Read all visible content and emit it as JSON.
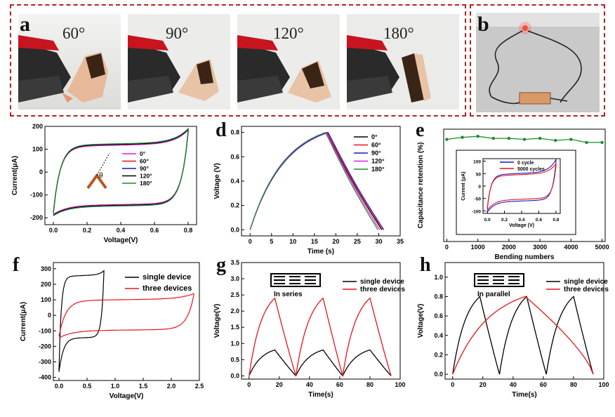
{
  "photos": {
    "panel_a_label": "a",
    "panel_b_label": "b",
    "angles": [
      "60°",
      "90°",
      "120°",
      "180°"
    ]
  },
  "panel_labels": {
    "d": "d",
    "e": "e",
    "f": "f",
    "g": "g",
    "h": "h"
  },
  "colors": {
    "black": "#000000",
    "red": "#e8141b",
    "blue": "#1a17c9",
    "magenta": "#e619e6",
    "green": "#1c8a2e",
    "frame": "#b22222"
  },
  "chart_data": [
    {
      "id": "c",
      "type": "line",
      "xlabel": "Voltage(V)",
      "ylabel": "Current(μA)",
      "xlim": [
        -0.05,
        0.85
      ],
      "ylim": [
        -230,
        200
      ],
      "xticks": [
        "0.0",
        "0.2",
        "0.4",
        "0.6",
        "0.8"
      ],
      "yticks": [
        "-200",
        "-100",
        "0",
        "100",
        "200"
      ],
      "legend": [
        "0°",
        "60°",
        "90°",
        "120°",
        "180°"
      ],
      "legend_position": "inside-center-right",
      "series": [
        {
          "name": "0°",
          "color": "#e619e6"
        },
        {
          "name": "60°",
          "color": "#e8141b"
        },
        {
          "name": "90°",
          "color": "#1a17c9"
        },
        {
          "name": "120°",
          "color": "#000000"
        },
        {
          "name": "180°",
          "color": "#1c8a2e"
        }
      ],
      "inset_annotation": "θ",
      "cv_shape": {
        "upper_plateau": 115,
        "lower_plateau": -140,
        "vmax": 0.8,
        "imax": 175,
        "imin": -178
      }
    },
    {
      "id": "d",
      "type": "line",
      "xlabel": "Time (s)",
      "ylabel": "Voltage (V)",
      "xlim": [
        -2,
        35
      ],
      "ylim": [
        -0.05,
        0.85
      ],
      "xticks": [
        "0",
        "5",
        "10",
        "15",
        "20",
        "25",
        "30",
        "35"
      ],
      "yticks": [
        "0.0",
        "0.2",
        "0.4",
        "0.6",
        "0.8"
      ],
      "legend": [
        "0°",
        "60°",
        "90°",
        "120°",
        "180°"
      ],
      "legend_position": "top-right",
      "series": [
        {
          "name": "0°",
          "color": "#000000",
          "charge_end": 17.9,
          "discharge_end": 30.7
        },
        {
          "name": "60°",
          "color": "#e8141b",
          "charge_end": 18.0,
          "discharge_end": 30.9
        },
        {
          "name": "90°",
          "color": "#1a17c9",
          "charge_end": 18.2,
          "discharge_end": 31.2
        },
        {
          "name": "120°",
          "color": "#e619e6",
          "charge_end": 17.8,
          "discharge_end": 30.2
        },
        {
          "name": "180°",
          "color": "#1c8a2e",
          "charge_end": 17.6,
          "discharge_end": 29.8
        }
      ]
    },
    {
      "id": "e",
      "type": "line",
      "xlabel": "Bending numbers",
      "ylabel": "Capacitance retention (%)",
      "xlim": [
        -100,
        5100
      ],
      "ylim": [
        0,
        110
      ],
      "xticks": [
        "0",
        "1000",
        "2000",
        "3000",
        "4000",
        "5000"
      ],
      "series": [
        {
          "name": "retention",
          "color": "#1c8a2e",
          "x": [
            0,
            500,
            1000,
            1500,
            2000,
            2500,
            3000,
            3500,
            4000,
            4500,
            5000
          ],
          "y": [
            100,
            102,
            103,
            101,
            101,
            100,
            101,
            99,
            100,
            97,
            97
          ]
        }
      ],
      "inset": {
        "xlabel": "Voltage (V)",
        "ylabel": "Current (μA)",
        "xticks": [
          "0.0",
          "0.2",
          "0.4",
          "0.6",
          "0.8"
        ],
        "yticks": [
          "-100",
          "-50",
          "0",
          "50",
          "100"
        ],
        "legend": [
          "0 cycle",
          "5000 cycles"
        ],
        "series": [
          {
            "name": "0 cycle",
            "color": "#1a17c9"
          },
          {
            "name": "5000 cycles",
            "color": "#e8141b"
          }
        ]
      }
    },
    {
      "id": "f",
      "type": "line",
      "xlabel": "Voltage(V)",
      "ylabel": "Current(μA)",
      "xlim": [
        -0.1,
        2.5
      ],
      "ylim": [
        -420,
        340
      ],
      "xticks": [
        "0.0",
        "0.5",
        "1.0",
        "1.5",
        "2.0",
        "2.5"
      ],
      "yticks": [
        "-400",
        "-300",
        "-200",
        "-100",
        "0",
        "100",
        "200",
        "300"
      ],
      "legend": [
        "single device",
        "three devices"
      ],
      "legend_position": "top-right",
      "series": [
        {
          "name": "single device",
          "color": "#000000",
          "vmax": 0.8,
          "imax": 275,
          "imin": -355,
          "plateau_hi": 250,
          "plateau_lo": -140
        },
        {
          "name": "three devices",
          "color": "#e8141b",
          "vmax": 2.4,
          "imax": 128,
          "imin": -135,
          "plateau_hi": 95,
          "plateau_lo": -90
        }
      ]
    },
    {
      "id": "g",
      "type": "line",
      "xlabel": "Time(s)",
      "ylabel": "Voltage(V)",
      "xlim": [
        -5,
        100
      ],
      "ylim": [
        -0.1,
        3.5
      ],
      "xticks": [
        "0",
        "20",
        "40",
        "60",
        "80",
        "100"
      ],
      "yticks": [
        "0.0",
        "0.5",
        "1.0",
        "1.5",
        "2.0",
        "2.5",
        "3.0",
        "3.5"
      ],
      "legend": [
        "single device",
        "three devices"
      ],
      "legend_position": "top-right",
      "inset_label": "In series",
      "series": [
        {
          "name": "single device",
          "color": "#000000",
          "vmax": 0.8,
          "peaks": [
            17,
            49,
            80
          ],
          "troughs": [
            0,
            31,
            62,
            94
          ]
        },
        {
          "name": "three devices",
          "color": "#e8141b",
          "vmax": 2.4,
          "peaks": [
            17,
            49,
            80
          ],
          "troughs": [
            0,
            31,
            62,
            94
          ]
        }
      ]
    },
    {
      "id": "h",
      "type": "line",
      "xlabel": "Time(s)",
      "ylabel": "Voltage(V)",
      "xlim": [
        -5,
        100
      ],
      "ylim": [
        -0.05,
        1.15
      ],
      "xticks": [
        "0",
        "20",
        "40",
        "60",
        "80",
        "100"
      ],
      "yticks": [
        "0.0",
        "0.2",
        "0.4",
        "0.6",
        "0.8",
        "1.0"
      ],
      "legend": [
        "single device",
        "three devices"
      ],
      "legend_position": "top-right",
      "inset_label": "In parallel",
      "series": [
        {
          "name": "single device",
          "color": "#000000",
          "vmax": 0.8,
          "peaks": [
            18,
            49,
            80
          ],
          "troughs": [
            0,
            31,
            62,
            93
          ]
        },
        {
          "name": "three devices",
          "color": "#e8141b",
          "vmax": 0.8,
          "peaks": [
            48
          ],
          "troughs": [
            0,
            93
          ]
        }
      ]
    }
  ]
}
